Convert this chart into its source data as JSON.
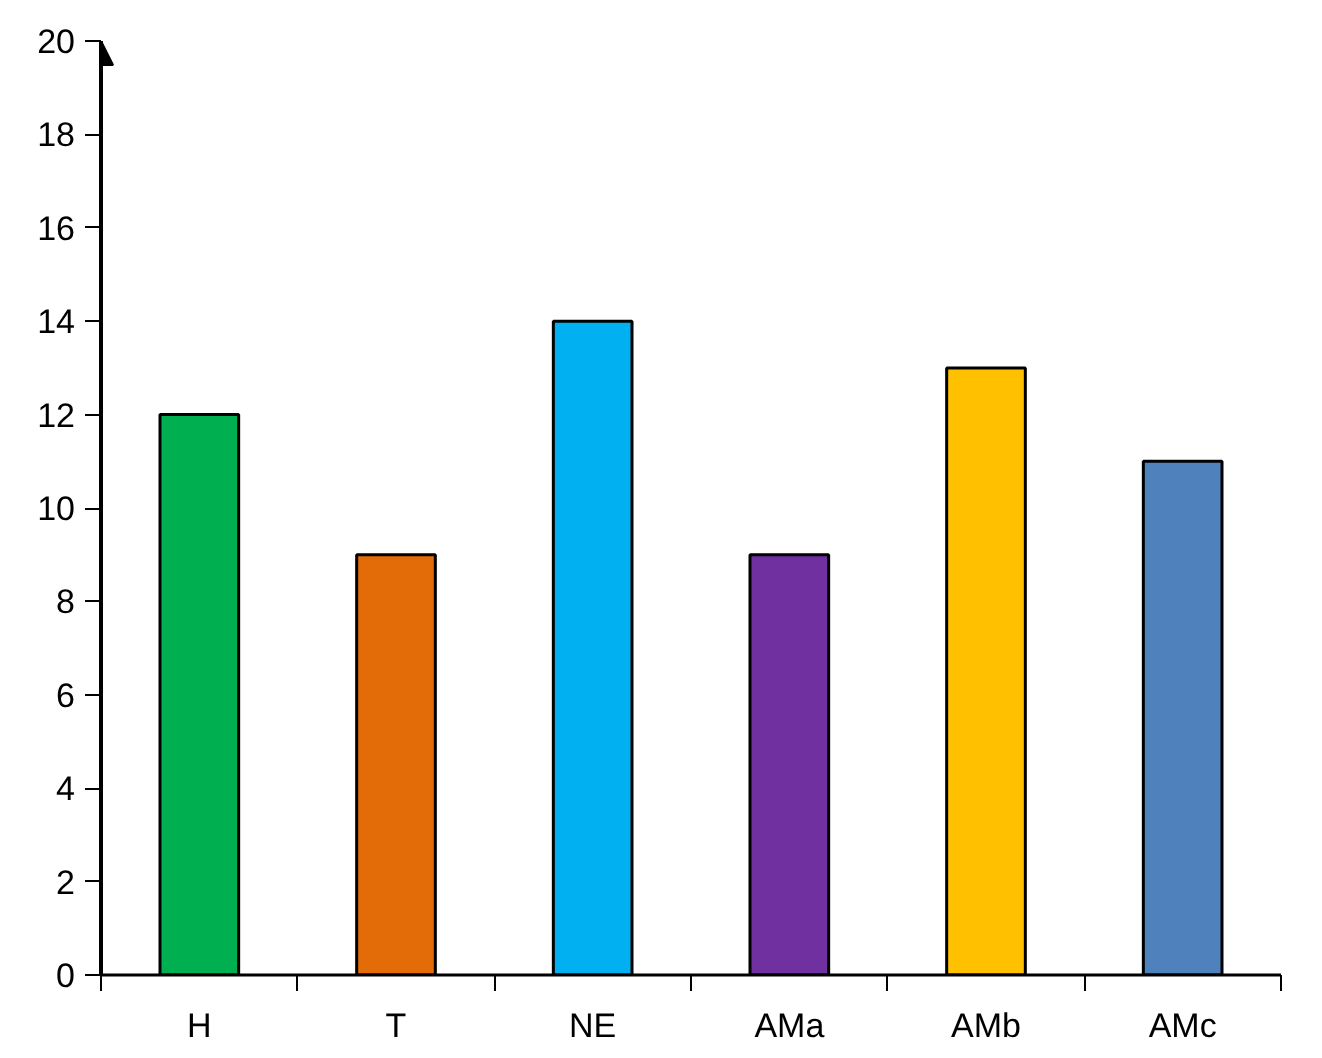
{
  "chart_data": {
    "type": "bar",
    "categories": [
      "H",
      "T",
      "NE",
      "AMa",
      "AMb",
      "AMc"
    ],
    "values": [
      12,
      9,
      14,
      9,
      13,
      11
    ],
    "colors": [
      "#00b050",
      "#e36c09",
      "#00b0f0",
      "#7030a0",
      "#ffc000",
      "#4f81bd"
    ],
    "ylim": [
      0,
      20
    ],
    "yticks": [
      0,
      2,
      4,
      6,
      8,
      10,
      12,
      14,
      16,
      18,
      20
    ],
    "grid": false
  }
}
